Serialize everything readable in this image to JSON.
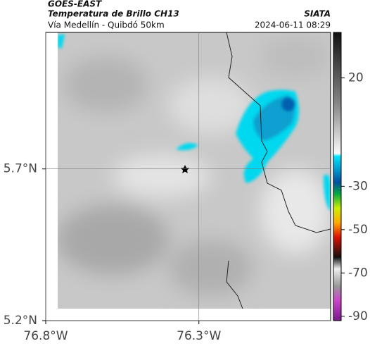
{
  "header": {
    "source": "GOES-EAST",
    "title": "Temperatura de Brillo CH13",
    "agency": "SIATA",
    "subtitle": "Vía Medellín - Quibdó 50km",
    "timestamp": "2024-06-11 08:29"
  },
  "map": {
    "xlim": [
      -76.8,
      -75.87
    ],
    "ylim": [
      5.2,
      6.15
    ],
    "xticks": [
      {
        "value": -76.8,
        "label": "76.8°W"
      },
      {
        "value": -76.3,
        "label": "76.3°W"
      }
    ],
    "yticks": [
      {
        "value": 5.7,
        "label": "5.7°N"
      },
      {
        "value": 5.2,
        "label": "5.2°N"
      }
    ],
    "grid": true
  },
  "colorbar": {
    "lim": [
      -92,
      41
    ],
    "ticks": [
      20,
      -30,
      -50,
      -70,
      -90
    ]
  }
}
